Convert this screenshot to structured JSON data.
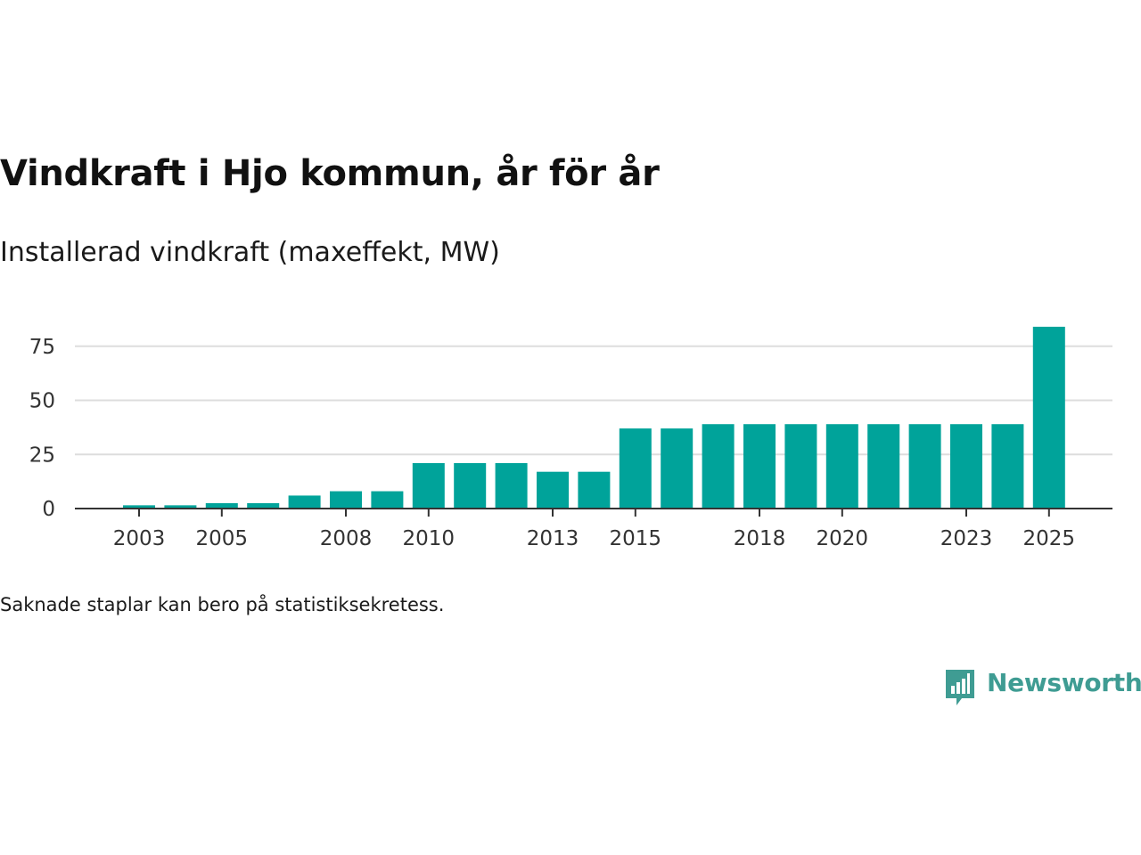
{
  "title": "Vindkraft i Hjo kommun, år för år",
  "subtitle": "Installerad vindkraft (maxeffekt, MW)",
  "footnote": "Saknade staplar kan bero på statistiksekretess.",
  "brand": {
    "name": "Newsworthy",
    "icon": "newsworthy-logo-icon"
  },
  "colors": {
    "bar": "#00a39a",
    "grid": "#dddddd",
    "axis": "#333333",
    "brand": "#3f9c93"
  },
  "chart_data": {
    "type": "bar",
    "categories": [
      "2003",
      "2004",
      "2005",
      "2006",
      "2007",
      "2008",
      "2009",
      "2010",
      "2011",
      "2012",
      "2013",
      "2014",
      "2015",
      "2016",
      "2017",
      "2018",
      "2019",
      "2020",
      "2021",
      "2022",
      "2023",
      "2024",
      "2025"
    ],
    "values": [
      1.5,
      1.5,
      2.5,
      2.5,
      6,
      8,
      8,
      21,
      21,
      21,
      17,
      17,
      37,
      37,
      39,
      39,
      39,
      39,
      39,
      39,
      39,
      39,
      84
    ],
    "x_tick_labels": [
      "2003",
      "2005",
      "2008",
      "2010",
      "2013",
      "2015",
      "2018",
      "2020",
      "2023",
      "2025"
    ],
    "y_ticks": [
      0,
      25,
      50,
      75
    ],
    "ylim": [
      0,
      84
    ],
    "grid": true,
    "title": "Vindkraft i Hjo kommun, år för år",
    "subtitle": "Installerad vindkraft (maxeffekt, MW)",
    "xlabel": "",
    "ylabel": ""
  }
}
